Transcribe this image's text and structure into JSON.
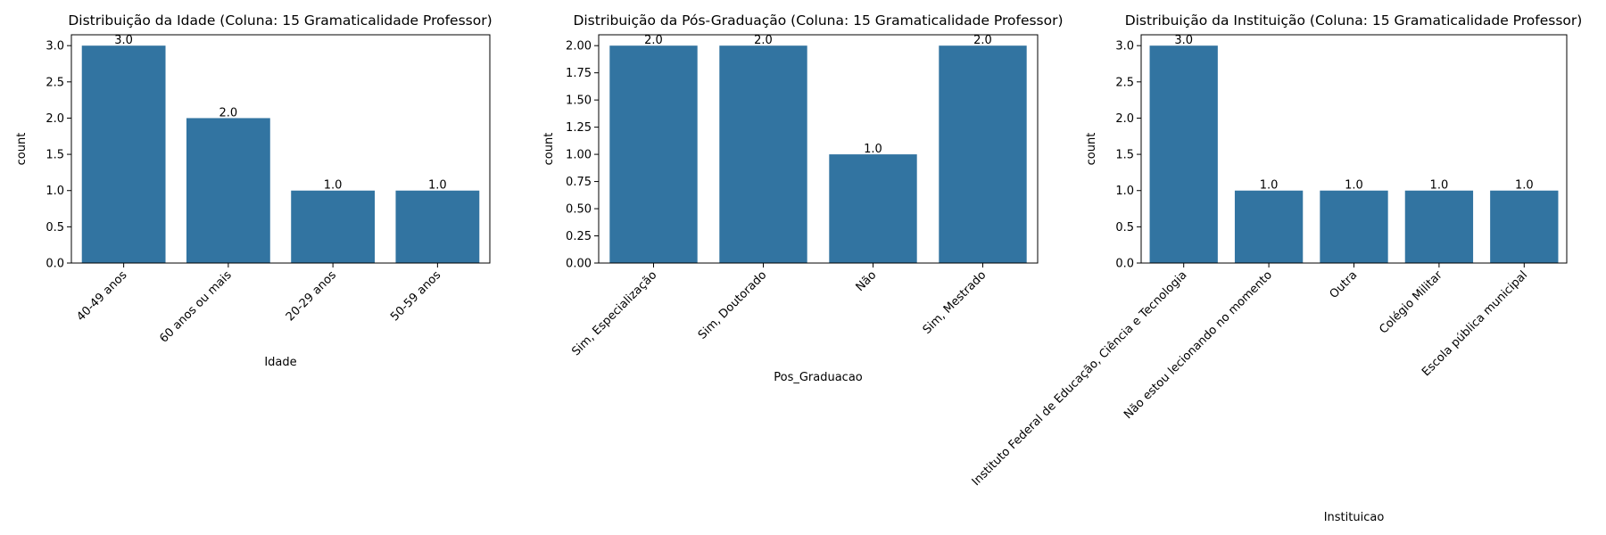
{
  "figure": {
    "bar_color": "#3274a1",
    "axis_color": "#000000"
  },
  "chart_data": [
    {
      "type": "bar",
      "title": "Distribuição da Idade (Coluna: 15 Gramaticalidade Professor)",
      "xlabel": "Idade",
      "ylabel": "count",
      "categories": [
        "40-49 anos",
        "60 anos ou mais",
        "20-29 anos",
        "50-59 anos"
      ],
      "values": [
        3.0,
        2.0,
        1.0,
        1.0
      ],
      "value_labels": [
        "3.0",
        "2.0",
        "1.0",
        "1.0"
      ],
      "ylim": [
        0,
        3.15
      ],
      "yticks": [
        0.0,
        0.5,
        1.0,
        1.5,
        2.0,
        2.5,
        3.0
      ],
      "ytick_labels": [
        "0.0",
        "0.5",
        "1.0",
        "1.5",
        "2.0",
        "2.5",
        "3.0"
      ],
      "grid": false
    },
    {
      "type": "bar",
      "title": "Distribuição da Pós-Graduação (Coluna: 15 Gramaticalidade Professor)",
      "xlabel": "Pos_Graduacao",
      "ylabel": "count",
      "categories": [
        "Sim, Especialização",
        "Sim, Doutorado",
        "Não",
        "Sim, Mestrado"
      ],
      "values": [
        2.0,
        2.0,
        1.0,
        2.0
      ],
      "value_labels": [
        "2.0",
        "2.0",
        "1.0",
        "2.0"
      ],
      "ylim": [
        0,
        2.1
      ],
      "yticks": [
        0.0,
        0.25,
        0.5,
        0.75,
        1.0,
        1.25,
        1.5,
        1.75,
        2.0
      ],
      "ytick_labels": [
        "0.00",
        "0.25",
        "0.50",
        "0.75",
        "1.00",
        "1.25",
        "1.50",
        "1.75",
        "2.00"
      ],
      "grid": false
    },
    {
      "type": "bar",
      "title": "Distribuição da Instituição (Coluna: 15 Gramaticalidade Professor)",
      "xlabel": "Instituicao",
      "ylabel": "count",
      "categories": [
        "Instituto Federal de Educação, Ciência e Tecnologia",
        "Não estou lecionando no momento",
        "Outra",
        "Colégio Militar",
        "Escola pública municipal"
      ],
      "values": [
        3.0,
        1.0,
        1.0,
        1.0,
        1.0
      ],
      "value_labels": [
        "3.0",
        "1.0",
        "1.0",
        "1.0",
        "1.0"
      ],
      "ylim": [
        0,
        3.15
      ],
      "yticks": [
        0.0,
        0.5,
        1.0,
        1.5,
        2.0,
        2.5,
        3.0
      ],
      "ytick_labels": [
        "0.0",
        "0.5",
        "1.0",
        "1.5",
        "2.0",
        "2.5",
        "3.0"
      ],
      "grid": false
    }
  ]
}
